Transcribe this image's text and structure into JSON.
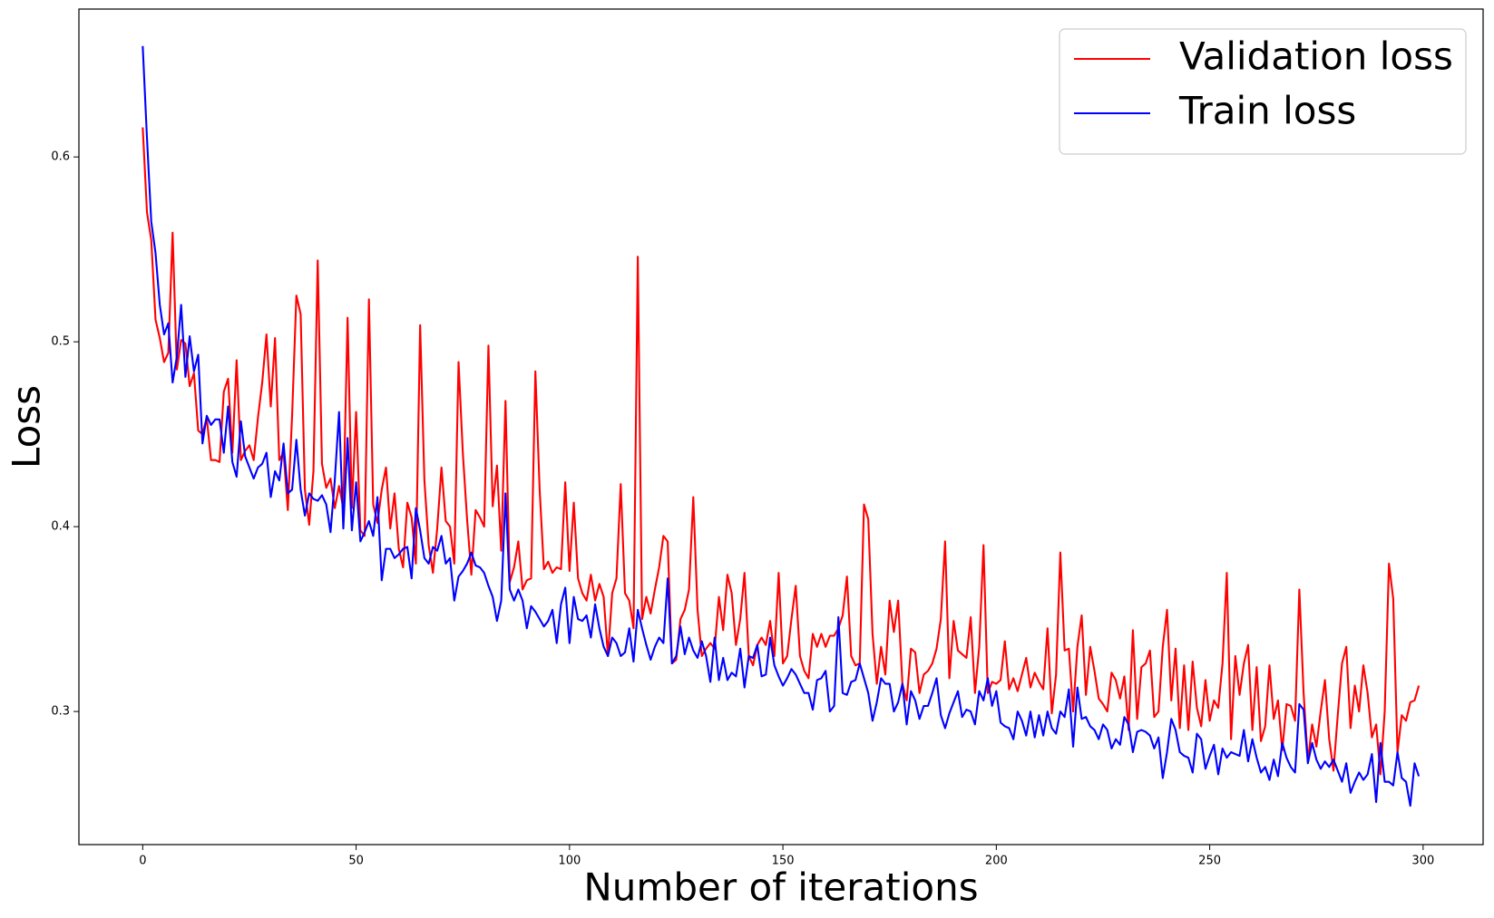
{
  "chart_data": {
    "type": "line",
    "xlabel": "Number of iterations",
    "ylabel": "Loss",
    "xlim": [
      -14.95,
      314.06
    ],
    "ylim": [
      0.228,
      0.68
    ],
    "xticks": [
      0,
      50,
      100,
      150,
      200,
      250,
      300
    ],
    "yticks": [
      0.3,
      0.4,
      0.5,
      0.6
    ],
    "legend": "upper right",
    "x": [
      0,
      1,
      2,
      3,
      4,
      5,
      6,
      7,
      8,
      9,
      10,
      11,
      12,
      13,
      14,
      15,
      16,
      17,
      18,
      19,
      20,
      21,
      22,
      23,
      24,
      25,
      26,
      27,
      28,
      29,
      30,
      31,
      32,
      33,
      34,
      35,
      36,
      37,
      38,
      39,
      40,
      41,
      42,
      43,
      44,
      45,
      46,
      47,
      48,
      49,
      50,
      51,
      52,
      53,
      54,
      55,
      56,
      57,
      58,
      59,
      60,
      61,
      62,
      63,
      64,
      65,
      66,
      67,
      68,
      69,
      70,
      71,
      72,
      73,
      74,
      75,
      76,
      77,
      78,
      79,
      80,
      81,
      82,
      83,
      84,
      85,
      86,
      87,
      88,
      89,
      90,
      91,
      92,
      93,
      94,
      95,
      96,
      97,
      98,
      99,
      100,
      101,
      102,
      103,
      104,
      105,
      106,
      107,
      108,
      109,
      110,
      111,
      112,
      113,
      114,
      115,
      116,
      117,
      118,
      119,
      120,
      121,
      122,
      123,
      124,
      125,
      126,
      127,
      128,
      129,
      130,
      131,
      132,
      133,
      134,
      135,
      136,
      137,
      138,
      139,
      140,
      141,
      142,
      143,
      144,
      145,
      146,
      147,
      148,
      149,
      150,
      151,
      152,
      153,
      154,
      155,
      156,
      157,
      158,
      159,
      160,
      161,
      162,
      163,
      164,
      165,
      166,
      167,
      168,
      169,
      170,
      171,
      172,
      173,
      174,
      175,
      176,
      177,
      178,
      179,
      180,
      181,
      182,
      183,
      184,
      185,
      186,
      187,
      188,
      189,
      190,
      191,
      192,
      193,
      194,
      195,
      196,
      197,
      198,
      199,
      200,
      201,
      202,
      203,
      204,
      205,
      206,
      207,
      208,
      209,
      210,
      211,
      212,
      213,
      214,
      215,
      216,
      217,
      218,
      219,
      220,
      221,
      222,
      223,
      224,
      225,
      226,
      227,
      228,
      229,
      230,
      231,
      232,
      233,
      234,
      235,
      236,
      237,
      238,
      239,
      240,
      241,
      242,
      243,
      244,
      245,
      246,
      247,
      248,
      249,
      250,
      251,
      252,
      253,
      254,
      255,
      256,
      257,
      258,
      259,
      260,
      261,
      262,
      263,
      264,
      265,
      266,
      267,
      268,
      269,
      270,
      271,
      272,
      273,
      274,
      275,
      276,
      277,
      278,
      279,
      280,
      281,
      282,
      283,
      284,
      285,
      286,
      287,
      288,
      289,
      290,
      291,
      292,
      293,
      294,
      295,
      296,
      297,
      298,
      299
    ],
    "series": [
      {
        "name": "Validation loss",
        "color": "#ff0000",
        "values": [
          0.616,
          0.57,
          0.555,
          0.512,
          0.502,
          0.489,
          0.494,
          0.559,
          0.485,
          0.501,
          0.499,
          0.476,
          0.483,
          0.452,
          0.45,
          0.459,
          0.436,
          0.436,
          0.435,
          0.473,
          0.48,
          0.44,
          0.49,
          0.436,
          0.441,
          0.444,
          0.436,
          0.459,
          0.478,
          0.504,
          0.465,
          0.502,
          0.436,
          0.44,
          0.409,
          0.46,
          0.525,
          0.515,
          0.42,
          0.401,
          0.43,
          0.544,
          0.434,
          0.421,
          0.426,
          0.41,
          0.422,
          0.41,
          0.513,
          0.41,
          0.462,
          0.398,
          0.395,
          0.523,
          0.412,
          0.402,
          0.42,
          0.432,
          0.399,
          0.418,
          0.388,
          0.378,
          0.413,
          0.405,
          0.38,
          0.509,
          0.425,
          0.39,
          0.375,
          0.399,
          0.432,
          0.403,
          0.4,
          0.38,
          0.489,
          0.44,
          0.404,
          0.374,
          0.409,
          0.405,
          0.4,
          0.498,
          0.411,
          0.433,
          0.387,
          0.468,
          0.37,
          0.378,
          0.392,
          0.366,
          0.371,
          0.372,
          0.484,
          0.42,
          0.377,
          0.381,
          0.375,
          0.378,
          0.377,
          0.424,
          0.376,
          0.413,
          0.372,
          0.364,
          0.36,
          0.374,
          0.36,
          0.369,
          0.362,
          0.33,
          0.364,
          0.372,
          0.423,
          0.364,
          0.36,
          0.345,
          0.546,
          0.35,
          0.362,
          0.353,
          0.366,
          0.378,
          0.395,
          0.392,
          0.326,
          0.328,
          0.35,
          0.355,
          0.366,
          0.416,
          0.355,
          0.33,
          0.334,
          0.337,
          0.334,
          0.362,
          0.344,
          0.374,
          0.364,
          0.336,
          0.35,
          0.375,
          0.33,
          0.325,
          0.336,
          0.34,
          0.336,
          0.349,
          0.33,
          0.375,
          0.326,
          0.33,
          0.35,
          0.368,
          0.33,
          0.322,
          0.318,
          0.342,
          0.335,
          0.342,
          0.335,
          0.341,
          0.341,
          0.345,
          0.352,
          0.373,
          0.33,
          0.325,
          0.326,
          0.412,
          0.404,
          0.342,
          0.315,
          0.335,
          0.32,
          0.36,
          0.343,
          0.36,
          0.315,
          0.306,
          0.334,
          0.332,
          0.31,
          0.32,
          0.322,
          0.326,
          0.334,
          0.35,
          0.392,
          0.318,
          0.349,
          0.333,
          0.331,
          0.329,
          0.351,
          0.31,
          0.335,
          0.39,
          0.31,
          0.316,
          0.315,
          0.317,
          0.338,
          0.312,
          0.318,
          0.311,
          0.32,
          0.329,
          0.313,
          0.321,
          0.316,
          0.312,
          0.345,
          0.299,
          0.32,
          0.386,
          0.333,
          0.334,
          0.3,
          0.335,
          0.352,
          0.309,
          0.335,
          0.322,
          0.307,
          0.304,
          0.3,
          0.321,
          0.317,
          0.307,
          0.319,
          0.29,
          0.344,
          0.296,
          0.324,
          0.326,
          0.333,
          0.297,
          0.3,
          0.335,
          0.355,
          0.306,
          0.334,
          0.291,
          0.325,
          0.29,
          0.327,
          0.302,
          0.292,
          0.317,
          0.295,
          0.306,
          0.302,
          0.326,
          0.375,
          0.285,
          0.33,
          0.309,
          0.326,
          0.336,
          0.29,
          0.324,
          0.284,
          0.292,
          0.325,
          0.296,
          0.306,
          0.279,
          0.304,
          0.303,
          0.295,
          0.366,
          0.31,
          0.273,
          0.293,
          0.281,
          0.3,
          0.317,
          0.285,
          0.268,
          0.298,
          0.326,
          0.335,
          0.291,
          0.314,
          0.3,
          0.325,
          0.31,
          0.286,
          0.293,
          0.266,
          0.3,
          0.38,
          0.361,
          0.278,
          0.298,
          0.295,
          0.305,
          0.306,
          0.314
        ]
      },
      {
        "name": "Train loss",
        "color": "#0000ff",
        "values": [
          0.66,
          0.61,
          0.565,
          0.548,
          0.52,
          0.504,
          0.51,
          0.478,
          0.492,
          0.52,
          0.481,
          0.503,
          0.484,
          0.493,
          0.445,
          0.46,
          0.455,
          0.458,
          0.458,
          0.44,
          0.465,
          0.435,
          0.427,
          0.457,
          0.438,
          0.432,
          0.426,
          0.432,
          0.434,
          0.44,
          0.416,
          0.43,
          0.425,
          0.445,
          0.418,
          0.42,
          0.447,
          0.42,
          0.406,
          0.418,
          0.415,
          0.414,
          0.417,
          0.412,
          0.397,
          0.425,
          0.462,
          0.399,
          0.448,
          0.398,
          0.424,
          0.392,
          0.397,
          0.403,
          0.395,
          0.416,
          0.371,
          0.388,
          0.388,
          0.383,
          0.385,
          0.388,
          0.389,
          0.372,
          0.41,
          0.398,
          0.383,
          0.38,
          0.389,
          0.387,
          0.395,
          0.38,
          0.383,
          0.36,
          0.373,
          0.376,
          0.38,
          0.386,
          0.379,
          0.378,
          0.375,
          0.368,
          0.362,
          0.349,
          0.36,
          0.418,
          0.366,
          0.36,
          0.366,
          0.36,
          0.345,
          0.357,
          0.354,
          0.35,
          0.346,
          0.349,
          0.355,
          0.337,
          0.358,
          0.367,
          0.337,
          0.362,
          0.35,
          0.349,
          0.352,
          0.34,
          0.358,
          0.345,
          0.335,
          0.33,
          0.34,
          0.337,
          0.33,
          0.332,
          0.345,
          0.327,
          0.355,
          0.345,
          0.336,
          0.328,
          0.335,
          0.34,
          0.337,
          0.372,
          0.326,
          0.33,
          0.346,
          0.331,
          0.34,
          0.333,
          0.329,
          0.338,
          0.33,
          0.316,
          0.34,
          0.317,
          0.329,
          0.317,
          0.321,
          0.319,
          0.334,
          0.313,
          0.33,
          0.329,
          0.336,
          0.319,
          0.32,
          0.34,
          0.325,
          0.319,
          0.314,
          0.318,
          0.323,
          0.32,
          0.315,
          0.31,
          0.31,
          0.301,
          0.317,
          0.318,
          0.322,
          0.3,
          0.303,
          0.351,
          0.31,
          0.309,
          0.316,
          0.317,
          0.326,
          0.318,
          0.31,
          0.295,
          0.305,
          0.318,
          0.315,
          0.315,
          0.3,
          0.305,
          0.315,
          0.293,
          0.311,
          0.306,
          0.296,
          0.303,
          0.303,
          0.31,
          0.318,
          0.298,
          0.291,
          0.299,
          0.305,
          0.311,
          0.297,
          0.301,
          0.3,
          0.293,
          0.311,
          0.306,
          0.318,
          0.303,
          0.311,
          0.294,
          0.292,
          0.291,
          0.285,
          0.3,
          0.295,
          0.287,
          0.3,
          0.286,
          0.298,
          0.287,
          0.3,
          0.291,
          0.288,
          0.3,
          0.297,
          0.312,
          0.281,
          0.313,
          0.296,
          0.297,
          0.292,
          0.29,
          0.285,
          0.293,
          0.29,
          0.28,
          0.285,
          0.282,
          0.297,
          0.293,
          0.278,
          0.289,
          0.29,
          0.289,
          0.287,
          0.28,
          0.286,
          0.264,
          0.278,
          0.296,
          0.29,
          0.278,
          0.276,
          0.275,
          0.267,
          0.288,
          0.285,
          0.269,
          0.276,
          0.282,
          0.266,
          0.28,
          0.275,
          0.278,
          0.277,
          0.276,
          0.29,
          0.273,
          0.285,
          0.275,
          0.267,
          0.27,
          0.263,
          0.274,
          0.265,
          0.283,
          0.275,
          0.27,
          0.267,
          0.304,
          0.301,
          0.272,
          0.283,
          0.274,
          0.269,
          0.273,
          0.27,
          0.274,
          0.268,
          0.262,
          0.272,
          0.256,
          0.262,
          0.267,
          0.263,
          0.266,
          0.277,
          0.251,
          0.283,
          0.262,
          0.262,
          0.26,
          0.278,
          0.264,
          0.262,
          0.249,
          0.272,
          0.265
        ]
      }
    ]
  }
}
